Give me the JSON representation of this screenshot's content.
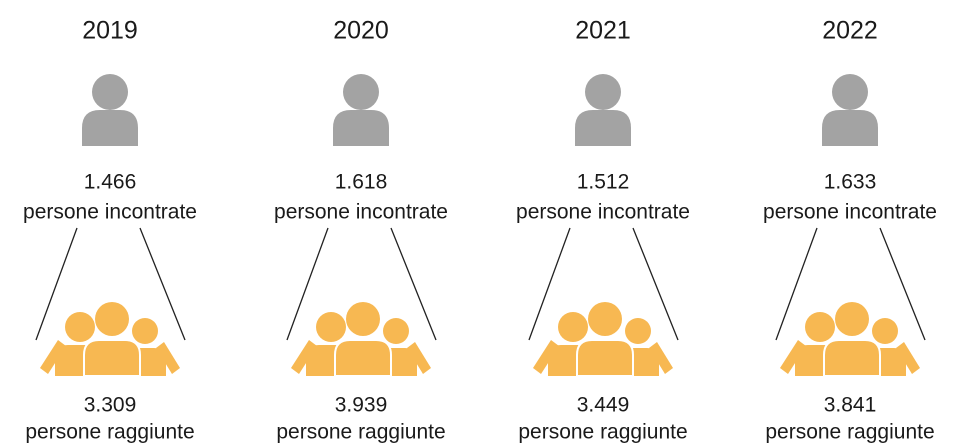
{
  "columns": [
    {
      "year": "2019",
      "met": "1.466",
      "met_label": "persone incontrate",
      "reached": "3.309",
      "reached_label": "persone raggiunte"
    },
    {
      "year": "2020",
      "met": "1.618",
      "met_label": "persone incontrate",
      "reached": "3.939",
      "reached_label": "persone raggiunte"
    },
    {
      "year": "2021",
      "met": "1.512",
      "met_label": "persone incontrate",
      "reached": "3.449",
      "reached_label": "persone raggiunte"
    },
    {
      "year": "2022",
      "met": "1.633",
      "met_label": "persone incontrate",
      "reached": "3.841",
      "reached_label": "persone raggiunte"
    }
  ]
}
